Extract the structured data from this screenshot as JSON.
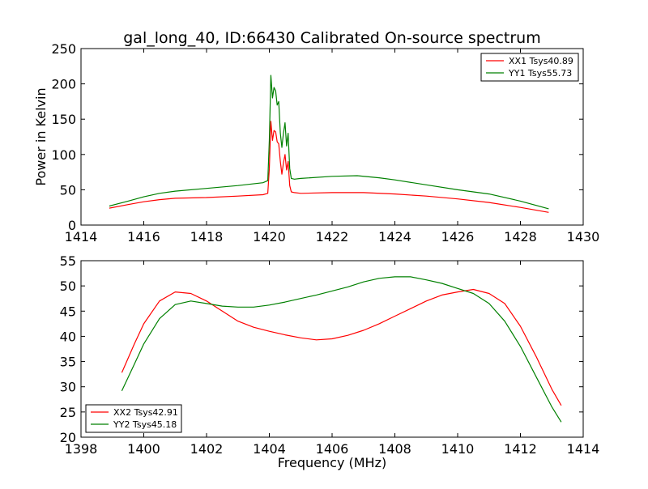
{
  "figure": {
    "title": "gal_long_40, ID:66430 Calibrated On-source spectrum"
  },
  "chart_data": [
    {
      "type": "line",
      "panel": "top",
      "title": "gal_long_40, ID:66430 Calibrated On-source spectrum",
      "xlabel": "",
      "ylabel": "Power in Kelvin",
      "xlim": [
        1414,
        1430
      ],
      "ylim": [
        0,
        250
      ],
      "x_ticks": [
        1414,
        1416,
        1418,
        1420,
        1422,
        1424,
        1426,
        1428,
        1430
      ],
      "y_ticks": [
        0,
        50,
        100,
        150,
        200,
        250
      ],
      "grid": false,
      "legend_position": "top-right",
      "series": [
        {
          "name": "XX1 Tsys40.89",
          "color": "#ff0000",
          "x": [
            1414.9,
            1415.5,
            1416.0,
            1416.5,
            1417.0,
            1418.0,
            1419.0,
            1419.8,
            1419.95,
            1420.0,
            1420.05,
            1420.1,
            1420.15,
            1420.2,
            1420.25,
            1420.3,
            1420.35,
            1420.4,
            1420.45,
            1420.5,
            1420.55,
            1420.6,
            1420.65,
            1420.7,
            1420.8,
            1421.0,
            1422.0,
            1423.0,
            1424.0,
            1425.0,
            1426.0,
            1427.0,
            1428.0,
            1428.9
          ],
          "y": [
            24,
            29,
            33,
            36,
            38,
            39,
            41,
            43,
            45,
            80,
            147,
            120,
            134,
            132,
            118,
            115,
            90,
            72,
            88,
            100,
            78,
            90,
            56,
            47,
            46,
            45,
            46,
            46,
            44,
            41,
            37,
            32,
            25,
            18
          ]
        },
        {
          "name": "YY1 Tsys55.73",
          "color": "#008000",
          "x": [
            1414.9,
            1415.5,
            1416.0,
            1416.5,
            1417.0,
            1418.0,
            1419.0,
            1419.8,
            1419.95,
            1420.0,
            1420.05,
            1420.1,
            1420.15,
            1420.2,
            1420.25,
            1420.3,
            1420.35,
            1420.4,
            1420.45,
            1420.5,
            1420.55,
            1420.6,
            1420.65,
            1420.7,
            1420.8,
            1421.0,
            1422.0,
            1422.8,
            1423.5,
            1424.0,
            1425.0,
            1426.0,
            1427.0,
            1428.0,
            1428.9
          ],
          "y": [
            27,
            34,
            40,
            45,
            48,
            52,
            56,
            60,
            63,
            120,
            212,
            180,
            195,
            190,
            170,
            175,
            130,
            110,
            130,
            145,
            112,
            130,
            80,
            66,
            65,
            66,
            69,
            70,
            67,
            64,
            57,
            50,
            44,
            34,
            23
          ]
        }
      ]
    },
    {
      "type": "line",
      "panel": "bottom",
      "title": "",
      "xlabel": "Frequency (MHz)",
      "ylabel": "",
      "xlim": [
        1398,
        1414
      ],
      "ylim": [
        20,
        55
      ],
      "x_ticks": [
        1398,
        1400,
        1402,
        1404,
        1406,
        1408,
        1410,
        1412,
        1414
      ],
      "y_ticks": [
        20,
        25,
        30,
        35,
        40,
        45,
        50,
        55
      ],
      "grid": false,
      "legend_position": "bottom-left",
      "series": [
        {
          "name": "XX2 Tsys42.91",
          "color": "#ff0000",
          "x": [
            1399.3,
            1399.7,
            1400.0,
            1400.5,
            1401.0,
            1401.5,
            1402.0,
            1402.5,
            1403.0,
            1403.5,
            1404.0,
            1404.5,
            1405.0,
            1405.5,
            1406.0,
            1406.5,
            1407.0,
            1407.5,
            1408.0,
            1408.5,
            1409.0,
            1409.5,
            1410.0,
            1410.5,
            1411.0,
            1411.5,
            1412.0,
            1412.5,
            1413.0,
            1413.3
          ],
          "y": [
            32.8,
            38.5,
            42.5,
            47.0,
            48.8,
            48.5,
            47.0,
            45.0,
            43.0,
            41.8,
            41.0,
            40.3,
            39.7,
            39.3,
            39.5,
            40.2,
            41.2,
            42.5,
            44.0,
            45.5,
            47.0,
            48.2,
            48.8,
            49.3,
            48.5,
            46.5,
            42.0,
            36.0,
            29.5,
            26.3
          ]
        },
        {
          "name": "YY2 Tsys45.18",
          "color": "#008000",
          "x": [
            1399.3,
            1399.7,
            1400.0,
            1400.5,
            1401.0,
            1401.5,
            1402.0,
            1402.5,
            1403.0,
            1403.5,
            1404.0,
            1404.5,
            1405.0,
            1405.5,
            1406.0,
            1406.5,
            1407.0,
            1407.5,
            1408.0,
            1408.5,
            1409.0,
            1409.5,
            1410.0,
            1410.5,
            1411.0,
            1411.5,
            1412.0,
            1412.5,
            1413.0,
            1413.3
          ],
          "y": [
            29.2,
            34.5,
            38.5,
            43.5,
            46.3,
            47.0,
            46.5,
            46.0,
            45.8,
            45.8,
            46.2,
            46.8,
            47.5,
            48.2,
            49.0,
            49.8,
            50.8,
            51.5,
            51.8,
            51.8,
            51.2,
            50.5,
            49.5,
            48.5,
            46.5,
            43.0,
            38.0,
            32.0,
            26.0,
            23.0
          ]
        }
      ]
    }
  ]
}
